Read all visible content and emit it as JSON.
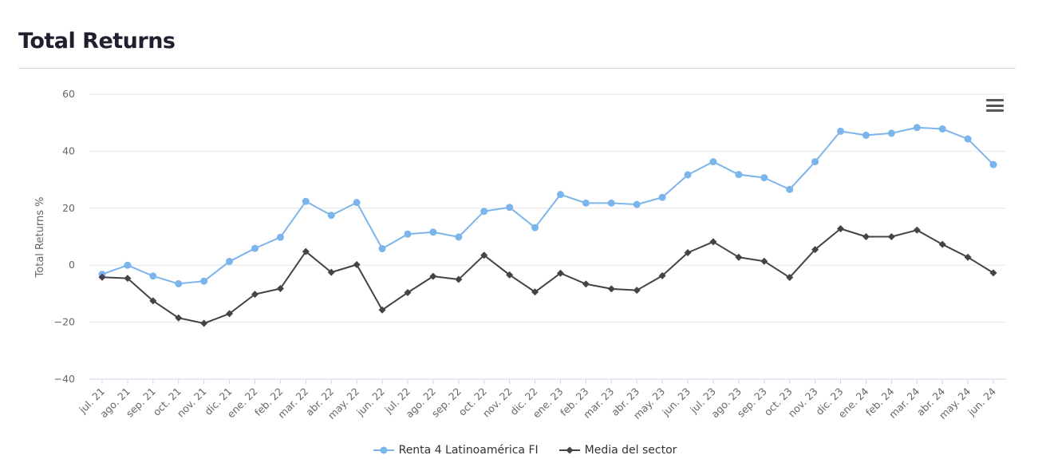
{
  "page": {
    "title": "Total Returns"
  },
  "chart_data": {
    "type": "line",
    "ylabel": "Total Returns %",
    "xlabel": "",
    "ylim": [
      -40,
      60
    ],
    "yticks": [
      60,
      40,
      20,
      0,
      -20,
      -40
    ],
    "grid": true,
    "legend_position": "bottom-center",
    "categories": [
      "jul. 21",
      "ago. 21",
      "sep. 21",
      "oct. 21",
      "nov. 21",
      "dic. 21",
      "ene. 22",
      "feb. 22",
      "mar. 22",
      "abr. 22",
      "may. 22",
      "jun. 22",
      "jul. 22",
      "ago. 22",
      "sep. 22",
      "oct. 22",
      "nov. 22",
      "dic. 22",
      "ene. 23",
      "feb. 23",
      "mar. 23",
      "abr. 23",
      "may. 23",
      "jun. 23",
      "jul. 23",
      "ago. 23",
      "sep. 23",
      "oct. 23",
      "nov. 23",
      "dic. 23",
      "ene. 24",
      "feb. 24",
      "mar. 24",
      "abr. 24",
      "may. 24",
      "jun. 24"
    ],
    "series": [
      {
        "name": "Renta 4 Latinoamérica FI",
        "color": "#7cb5ec",
        "marker": "circle",
        "values": [
          -3.2,
          0,
          -3.8,
          -6.5,
          -5.6,
          1.3,
          5.9,
          9.8,
          22.4,
          17.5,
          22.0,
          5.8,
          10.9,
          11.6,
          9.9,
          18.9,
          20.3,
          13.2,
          24.8,
          21.8,
          21.8,
          21.3,
          23.8,
          31.7,
          36.3,
          31.8,
          30.7,
          26.6,
          36.3,
          47.0,
          45.6,
          46.3,
          48.3,
          47.8,
          44.3,
          35.3
        ]
      },
      {
        "name": "Media del sector",
        "color": "#434348",
        "marker": "diamond",
        "values": [
          -4.2,
          -4.6,
          -12.5,
          -18.5,
          -20.4,
          -17.0,
          -10.2,
          -8.2,
          4.8,
          -2.5,
          0.2,
          -15.7,
          -9.6,
          -3.9,
          -5.0,
          3.5,
          -3.4,
          -9.4,
          -2.8,
          -6.6,
          -8.3,
          -8.8,
          -3.7,
          4.4,
          8.2,
          2.8,
          1.4,
          -4.3,
          5.5,
          12.8,
          10.0,
          10.0,
          12.3,
          7.3,
          2.8,
          -2.7
        ]
      }
    ]
  },
  "toolbar": {
    "menu_icon": "hamburger-menu-icon"
  }
}
